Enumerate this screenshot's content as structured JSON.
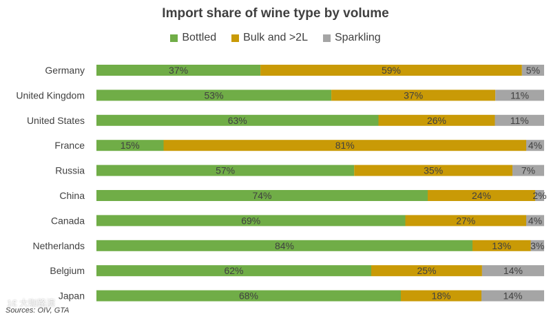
{
  "chart_data": {
    "type": "bar",
    "orientation": "horizontal-stacked",
    "title": "Import share of wine type by volume",
    "categories": [
      "Germany",
      "United Kingdom",
      "United States",
      "France",
      "Russia",
      "China",
      "Canada",
      "Netherlands",
      "Belgium",
      "Japan"
    ],
    "series": [
      {
        "name": "Bottled",
        "color": "#70AD47",
        "values": [
          37,
          53,
          63,
          15,
          57,
          74,
          69,
          84,
          62,
          68
        ]
      },
      {
        "name": "Bulk and >2L",
        "color": "#C99A06",
        "values": [
          59,
          37,
          26,
          81,
          35,
          24,
          27,
          13,
          25,
          18
        ]
      },
      {
        "name": "Sparkling",
        "color": "#A5A5A5",
        "values": [
          5,
          11,
          11,
          4,
          7,
          2,
          4,
          3,
          14,
          14
        ]
      }
    ],
    "label_suffix": "%",
    "legend_position": "top",
    "source": "Sources: OIV, GTA"
  },
  "watermark": "1€ 大咖路演"
}
